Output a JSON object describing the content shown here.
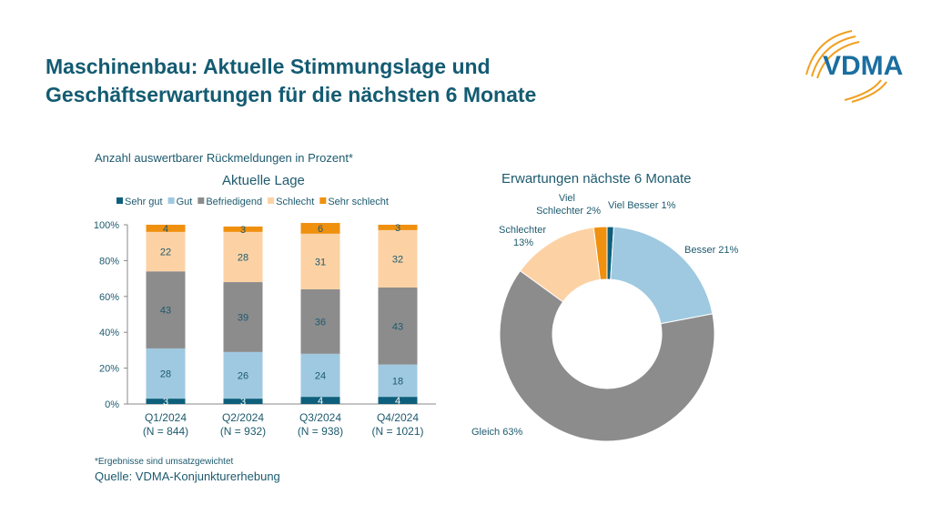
{
  "title_line1": "Maschinenbau: Aktuelle Stimmungslage und",
  "title_line2": "Geschäftserwartungen für die nächsten 6 Monate",
  "logo_text": "VDMA",
  "subtitle": "Anzahl auswertbarer Rückmeldungen in Prozent*",
  "footnote": "*Ergebnisse sind umsatzgewichtet",
  "source": "Quelle: VDMA-Konjunkturerhebung",
  "colors": {
    "sehr_gut": "#0e5f7b",
    "gut": "#9fc9e0",
    "befriedigend": "#8c8c8c",
    "schlecht": "#fcd2a5",
    "sehr_schlecht": "#f0900f"
  },
  "chart_data": [
    {
      "type": "bar",
      "stacked": true,
      "title": "Aktuelle Lage",
      "categories": [
        "Q1/2024",
        "Q2/2024",
        "Q3/2024",
        "Q4/2024"
      ],
      "category_sublabels": [
        "(N = 844)",
        "(N = 932)",
        "(N = 938)",
        "(N = 1021)"
      ],
      "series": [
        {
          "name": "Sehr gut",
          "values": [
            3,
            3,
            4,
            4
          ],
          "color": "#0e5f7b"
        },
        {
          "name": "Gut",
          "values": [
            28,
            26,
            24,
            18
          ],
          "color": "#9fc9e0"
        },
        {
          "name": "Befriedigend",
          "values": [
            43,
            39,
            36,
            43
          ],
          "color": "#8c8c8c"
        },
        {
          "name": "Schlecht",
          "values": [
            22,
            28,
            31,
            32
          ],
          "color": "#fcd2a5"
        },
        {
          "name": "Sehr schlecht",
          "values": [
            4,
            3,
            6,
            3
          ],
          "color": "#f0900f"
        }
      ],
      "ylim": [
        0,
        100
      ],
      "yticks": [
        "0%",
        "20%",
        "40%",
        "60%",
        "80%",
        "100%"
      ],
      "legend": "top",
      "grid": false
    },
    {
      "type": "pie",
      "donut": true,
      "title": "Erwartungen nächste 6 Monate",
      "slices": [
        {
          "label": "Viel Besser 1%",
          "value": 1,
          "color": "#0e5f7b"
        },
        {
          "label": "Besser 21%",
          "value": 21,
          "color": "#9fc9e0"
        },
        {
          "label": "Gleich  63%",
          "value": 63,
          "color": "#8c8c8c"
        },
        {
          "label": "Schlechter 13%",
          "value": 13,
          "color": "#fcd2a5"
        },
        {
          "label": "Viel Schlechter 2%",
          "value": 2,
          "color": "#f0900f"
        }
      ]
    }
  ]
}
